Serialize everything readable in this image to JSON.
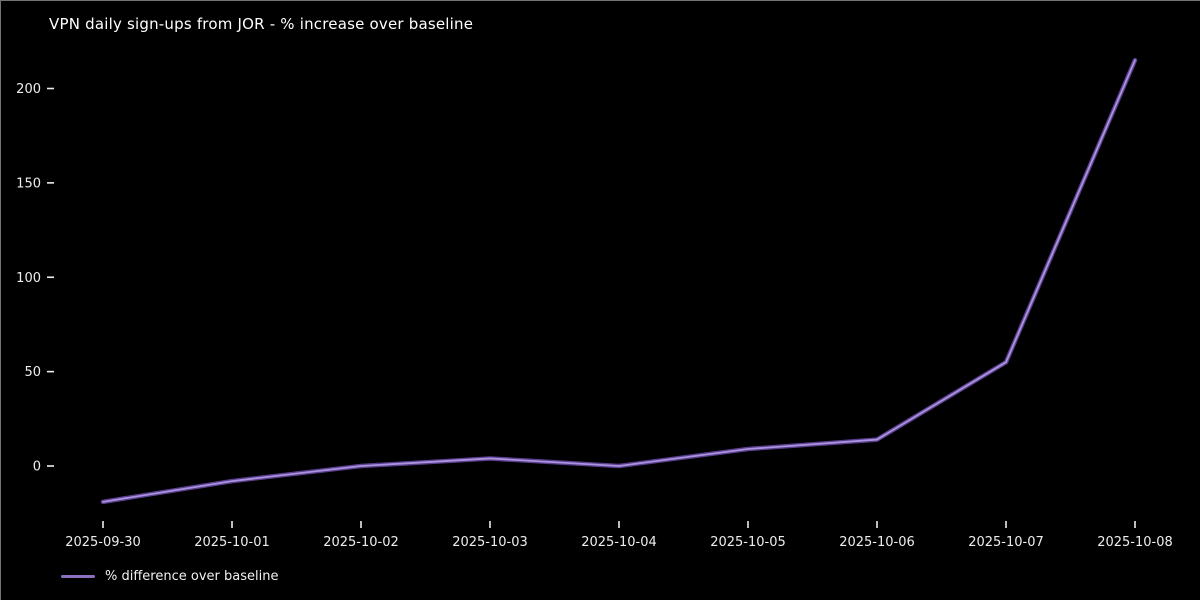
{
  "chart_data": {
    "type": "line",
    "title": "VPN daily sign-ups from JOR - % increase over baseline",
    "x": [
      "2025-09-30",
      "2025-10-01",
      "2025-10-02",
      "2025-10-03",
      "2025-10-04",
      "2025-10-05",
      "2025-10-06",
      "2025-10-07",
      "2025-10-08"
    ],
    "series": [
      {
        "name": "% difference over baseline",
        "values": [
          -19,
          -8,
          0,
          4,
          0,
          9,
          14,
          55,
          215
        ]
      }
    ],
    "xlabel": "",
    "ylabel": "",
    "yticks": [
      0,
      50,
      100,
      150,
      200
    ],
    "ylim": [
      -31,
      227
    ],
    "grid": false,
    "legend_position": "lower-left-below-axis",
    "colors": {
      "background": "#000000",
      "text": "#ededed",
      "line_core": "#ab93dd",
      "line_outer": "#6b4aa8",
      "legend_swatch": "#8b6fc0"
    }
  }
}
